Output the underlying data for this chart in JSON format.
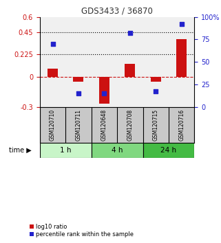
{
  "title": "GDS3433 / 36870",
  "samples": [
    "GSM120710",
    "GSM120711",
    "GSM120648",
    "GSM120708",
    "GSM120715",
    "GSM120716"
  ],
  "log10_ratio": [
    0.08,
    -0.05,
    -0.27,
    0.13,
    -0.05,
    0.38
  ],
  "percentile_rank": [
    70,
    15,
    15,
    82,
    17,
    92
  ],
  "time_groups": [
    {
      "label": "1 h",
      "start": 0,
      "end": 2,
      "color": "#c8f5c8"
    },
    {
      "label": "4 h",
      "start": 2,
      "end": 4,
      "color": "#80d880"
    },
    {
      "label": "24 h",
      "start": 4,
      "end": 6,
      "color": "#44bb44"
    }
  ],
  "ylim_left": [
    -0.3,
    0.6
  ],
  "ylim_right": [
    0,
    100
  ],
  "yticks_left": [
    -0.3,
    0,
    0.225,
    0.45,
    0.6
  ],
  "ytick_labels_left": [
    "-0.3",
    "0",
    "0.225",
    "0.45",
    "0.6"
  ],
  "yticks_right": [
    0,
    25,
    50,
    75,
    100
  ],
  "ytick_labels_right": [
    "0",
    "25",
    "50",
    "75",
    "100%"
  ],
  "hlines": [
    0.45,
    0.225
  ],
  "bar_color": "#cc1111",
  "dot_color": "#2222cc",
  "bar_width": 0.4,
  "dot_size": 22,
  "background_color": "#ffffff",
  "plot_bg": "#f0f0f0",
  "title_color": "#333333",
  "left_tick_color": "#cc1111",
  "right_tick_color": "#2222cc",
  "label_fontsize": 6.5,
  "tick_fontsize": 7
}
